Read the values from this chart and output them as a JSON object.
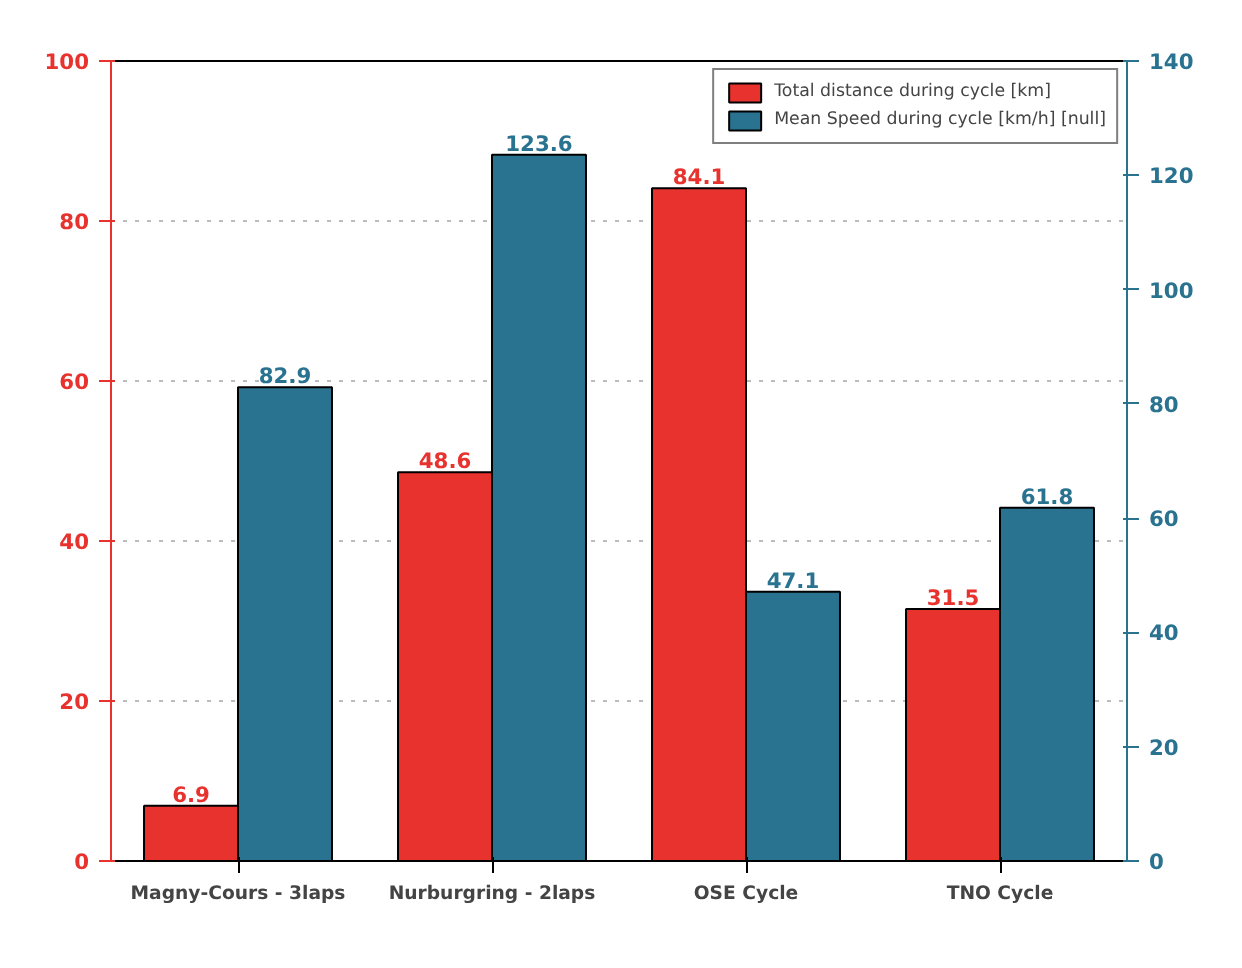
{
  "chart_data": {
    "type": "bar",
    "categories": [
      "Magny-Cours - 3laps",
      "Nurburgring - 2laps",
      "OSE Cycle",
      "TNO Cycle"
    ],
    "series": [
      {
        "name": "Total distance during cycle [km]",
        "color": "#e8322e",
        "values": [
          6.9,
          48.6,
          84.1,
          31.5
        ]
      },
      {
        "name": "Mean Speed during cycle [km/h] [null]",
        "color": "#2a7390",
        "values": [
          82.9,
          123.6,
          47.1,
          61.8
        ],
        "axis": "y2"
      }
    ],
    "ylim": [
      0,
      100
    ],
    "yticks": [
      0,
      20,
      40,
      60,
      80,
      100
    ],
    "y2lim": [
      0,
      140
    ],
    "y2ticks": [
      0,
      20,
      40,
      60,
      80,
      100,
      120,
      140
    ],
    "grid": "y",
    "legend": "top right",
    "data_labels": true
  }
}
